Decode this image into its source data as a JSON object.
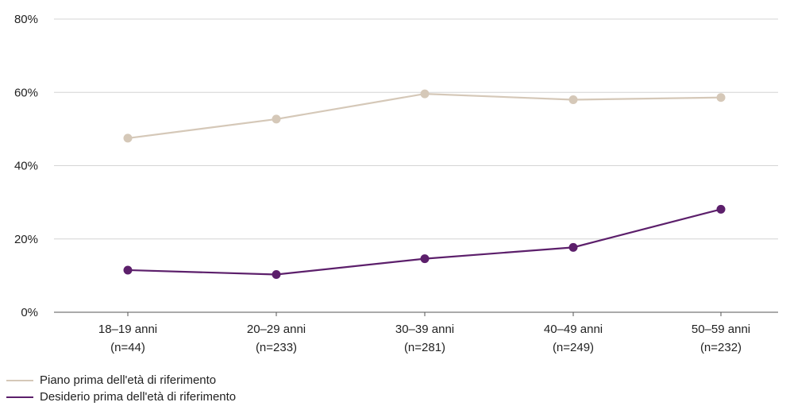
{
  "chart_data": {
    "type": "line",
    "categories": [
      [
        "18–19 anni",
        "(n=44)"
      ],
      [
        "20–29 anni",
        "(n=233)"
      ],
      [
        "30–39 anni",
        "(n=281)"
      ],
      [
        "40–49 anni",
        "(n=249)"
      ],
      [
        "50–59 anni",
        "(n=232)"
      ]
    ],
    "ylim": [
      0,
      80
    ],
    "yticks": [
      0,
      20,
      40,
      60,
      80
    ],
    "ytick_labels": [
      "0%",
      "20%",
      "40%",
      "60%",
      "80%"
    ],
    "grid": true,
    "legend_placement": "bottom-left",
    "series": [
      {
        "name": "Piano prima dell'età di riferimento",
        "color": "#d5c8b8",
        "values": [
          47.5,
          52.7,
          59.6,
          58.0,
          58.6
        ]
      },
      {
        "name": "Desiderio prima dell'età di riferimento",
        "color": "#5c1f6b",
        "values": [
          11.5,
          10.3,
          14.6,
          17.7,
          28.1
        ]
      }
    ]
  }
}
